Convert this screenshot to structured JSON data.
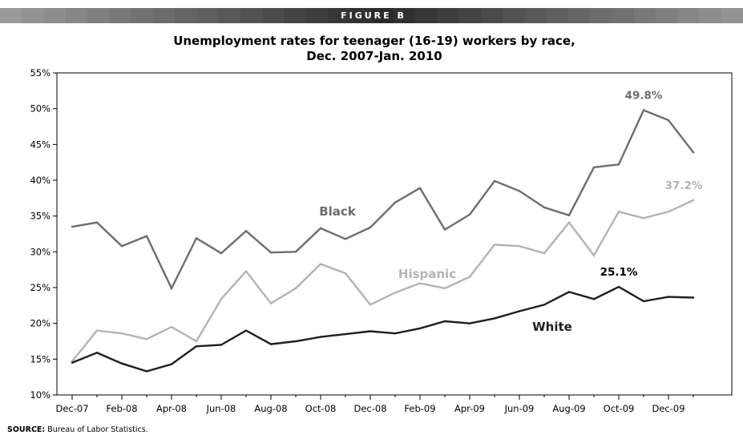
{
  "figure_label": "FIGURE B",
  "source": {
    "label": "SOURCE:",
    "text": "Bureau of Labor Statistics."
  },
  "colors": {
    "black_series": "#6d6d6d",
    "hispanic_series": "#b3b3b3",
    "white_series": "#1e1e1e",
    "banner_light": "#9a9a9a",
    "banner_dark": "#2a2a2a"
  },
  "chart_data": {
    "type": "line",
    "title_lines": [
      "Unemployment rates for teenager (16-19) workers by race,",
      "Dec. 2007-Jan. 2010"
    ],
    "xlabel": "",
    "ylabel": "",
    "ylim": [
      10,
      55
    ],
    "yticks": [
      "10%",
      "15%",
      "20%",
      "25%",
      "30%",
      "35%",
      "40%",
      "45%",
      "50%",
      "55%"
    ],
    "xtick_labels": [
      "Dec-07",
      "Feb-08",
      "Apr-08",
      "Jun-08",
      "Aug-08",
      "Oct-08",
      "Dec-08",
      "Feb-09",
      "Apr-09",
      "Jun-09",
      "Aug-09",
      "Oct-09",
      "Dec-09"
    ],
    "x": [
      "Dec-07",
      "Jan-08",
      "Feb-08",
      "Mar-08",
      "Apr-08",
      "May-08",
      "Jun-08",
      "Jul-08",
      "Aug-08",
      "Sep-08",
      "Oct-08",
      "Nov-08",
      "Dec-08",
      "Jan-09",
      "Feb-09",
      "Mar-09",
      "Apr-09",
      "May-09",
      "Jun-09",
      "Jul-09",
      "Aug-09",
      "Sep-09",
      "Oct-09",
      "Nov-09",
      "Dec-09",
      "Jan-10"
    ],
    "grid": false,
    "series": [
      {
        "name": "Black",
        "color": "#6d6d6d",
        "values": [
          33.5,
          34.1,
          30.8,
          32.2,
          24.9,
          31.9,
          29.8,
          32.9,
          29.9,
          30.0,
          33.3,
          31.8,
          33.4,
          36.9,
          38.9,
          33.1,
          35.2,
          39.9,
          38.5,
          36.2,
          35.1,
          41.8,
          42.2,
          49.8,
          48.4,
          43.9
        ]
      },
      {
        "name": "Hispanic",
        "color": "#b3b3b3",
        "values": [
          14.7,
          19.0,
          18.6,
          17.8,
          19.5,
          17.5,
          23.4,
          27.3,
          22.8,
          24.9,
          28.3,
          27.0,
          22.6,
          24.3,
          25.6,
          24.9,
          26.5,
          31.0,
          30.8,
          29.8,
          34.1,
          29.5,
          35.6,
          34.7,
          35.6,
          37.2
        ]
      },
      {
        "name": "White",
        "color": "#1e1e1e",
        "values": [
          14.5,
          15.9,
          14.4,
          13.3,
          14.3,
          16.8,
          17.0,
          19.0,
          17.1,
          17.5,
          18.1,
          18.5,
          18.9,
          18.6,
          19.3,
          20.3,
          20.0,
          20.7,
          21.7,
          22.6,
          24.4,
          23.4,
          25.1,
          23.1,
          23.7,
          23.6
        ]
      }
    ],
    "annotations": [
      {
        "text": "49.8%",
        "series": "Black",
        "point": "Nov-09"
      },
      {
        "text": "37.2%",
        "series": "Hispanic",
        "point": "Jan-10"
      },
      {
        "text": "25.1%",
        "series": "White",
        "point": "Oct-09"
      }
    ]
  }
}
